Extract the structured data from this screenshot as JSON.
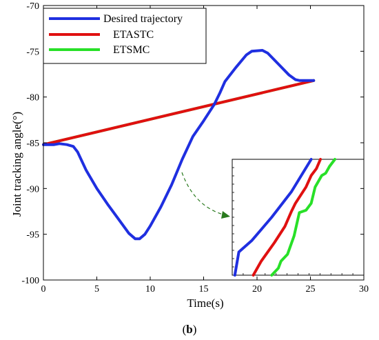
{
  "chart_data": {
    "type": "line",
    "caption_open": "(",
    "caption_letter": "b",
    "caption_close": ")",
    "xlabel": "Time(s)",
    "ylabel": "Joint tracking angle(°)",
    "xlim": [
      0,
      30
    ],
    "ylim": [
      -100,
      -70
    ],
    "xticks": [
      0,
      5,
      10,
      15,
      20,
      25,
      30
    ],
    "yticks": [
      -70,
      -75,
      -80,
      -85,
      -90,
      -95,
      -100
    ],
    "grid": false,
    "legend_position": "top-left",
    "series": [
      {
        "name": "Desired trajectory",
        "color": "#1f2fe0",
        "points": [
          [
            0,
            -85.2
          ],
          [
            1,
            -85.2
          ],
          [
            1.5,
            -85.1
          ],
          [
            2.2,
            -85.2
          ],
          [
            2.8,
            -85.4
          ],
          [
            3.2,
            -86.0
          ],
          [
            4,
            -88.0
          ],
          [
            5,
            -90.0
          ],
          [
            6,
            -91.7
          ],
          [
            7,
            -93.3
          ],
          [
            8,
            -94.9
          ],
          [
            8.6,
            -95.5
          ],
          [
            9.0,
            -95.5
          ],
          [
            9.5,
            -95.0
          ],
          [
            10,
            -94.1
          ],
          [
            11,
            -92.0
          ],
          [
            12,
            -89.6
          ],
          [
            13,
            -86.8
          ],
          [
            14,
            -84.3
          ],
          [
            15,
            -82.6
          ],
          [
            16,
            -80.8
          ],
          [
            16.5,
            -79.6
          ],
          [
            17,
            -78.3
          ],
          [
            18,
            -76.8
          ],
          [
            19,
            -75.4
          ],
          [
            19.5,
            -75.0
          ],
          [
            20.5,
            -74.9
          ],
          [
            21,
            -75.2
          ],
          [
            22,
            -76.4
          ],
          [
            23,
            -77.6
          ],
          [
            23.6,
            -78.1
          ],
          [
            24,
            -78.2
          ],
          [
            25.3,
            -78.2
          ]
        ]
      },
      {
        "name": "ETASTC",
        "color": "#e01010",
        "points": [
          [
            0,
            -85.2
          ],
          [
            25.3,
            -78.2
          ]
        ]
      },
      {
        "name": "ETSMC",
        "color": "#28e028",
        "points": [
          [
            0,
            -85.2
          ],
          [
            25.3,
            -78.2
          ]
        ]
      }
    ],
    "inset": {
      "annotation": "zoom-arrow",
      "series": [
        {
          "name": "Desired trajectory",
          "color": "#1f2fe0",
          "points": [
            [
              0.02,
              0.0
            ],
            [
              0.05,
              0.2
            ],
            [
              0.15,
              0.3
            ],
            [
              0.3,
              0.5
            ],
            [
              0.45,
              0.72
            ],
            [
              0.6,
              1.0
            ]
          ]
        },
        {
          "name": "ETASTC",
          "color": "#e01010",
          "points": [
            [
              0.16,
              0.0
            ],
            [
              0.22,
              0.12
            ],
            [
              0.32,
              0.28
            ],
            [
              0.4,
              0.42
            ],
            [
              0.45,
              0.55
            ],
            [
              0.48,
              0.62
            ],
            [
              0.56,
              0.76
            ],
            [
              0.6,
              0.86
            ],
            [
              0.64,
              0.92
            ],
            [
              0.67,
              1.0
            ]
          ]
        },
        {
          "name": "ETSMC",
          "color": "#28e028",
          "points": [
            [
              0.3,
              0.0
            ],
            [
              0.35,
              0.06
            ],
            [
              0.37,
              0.12
            ],
            [
              0.42,
              0.18
            ],
            [
              0.47,
              0.34
            ],
            [
              0.51,
              0.54
            ],
            [
              0.56,
              0.56
            ],
            [
              0.6,
              0.62
            ],
            [
              0.63,
              0.76
            ],
            [
              0.68,
              0.86
            ],
            [
              0.71,
              0.88
            ],
            [
              0.74,
              0.94
            ],
            [
              0.78,
              1.0
            ]
          ]
        }
      ]
    }
  }
}
